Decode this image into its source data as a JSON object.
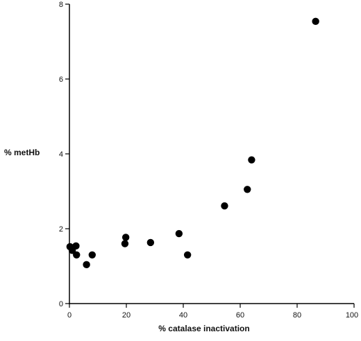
{
  "chart_data": {
    "type": "scatter",
    "title": "",
    "xlabel": "% catalase inactivation",
    "ylabel": "% metHb",
    "xlim": [
      0,
      100
    ],
    "ylim": [
      0,
      8
    ],
    "xticks": [
      "0",
      "20",
      "40",
      "60",
      "80",
      "100"
    ],
    "yticks": [
      "0",
      "2",
      "4",
      "6",
      "8"
    ],
    "grid": false,
    "legend": "none",
    "colors": {
      "marker": "#000000",
      "axis": "#000000"
    },
    "series": [
      {
        "points": [
          {
            "x": 0.2,
            "y": 1.52
          },
          {
            "x": 1.0,
            "y": 1.42
          },
          {
            "x": 2.3,
            "y": 1.54
          },
          {
            "x": 2.5,
            "y": 1.3
          },
          {
            "x": 6.0,
            "y": 1.04
          },
          {
            "x": 8.0,
            "y": 1.3
          },
          {
            "x": 19.5,
            "y": 1.6
          },
          {
            "x": 19.8,
            "y": 1.77
          },
          {
            "x": 28.5,
            "y": 1.63
          },
          {
            "x": 38.5,
            "y": 1.87
          },
          {
            "x": 41.5,
            "y": 1.3
          },
          {
            "x": 54.5,
            "y": 2.61
          },
          {
            "x": 62.5,
            "y": 3.05
          },
          {
            "x": 64.0,
            "y": 3.84
          },
          {
            "x": 86.5,
            "y": 7.54
          }
        ]
      }
    ]
  }
}
